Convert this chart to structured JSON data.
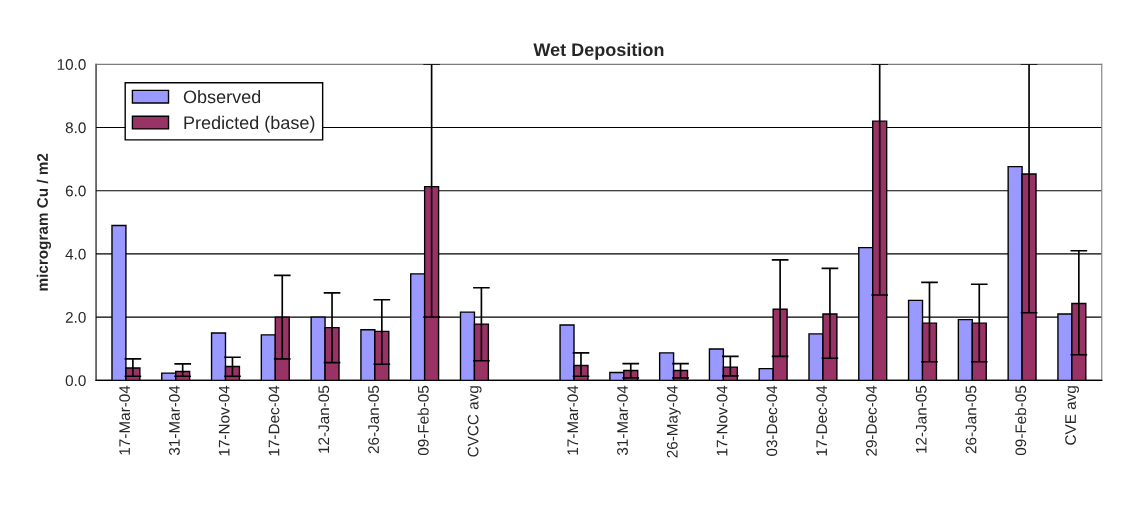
{
  "chart_data": {
    "type": "bar",
    "title": "Wet Deposition",
    "ylabel": "microgram Cu / m2",
    "categories": [
      "17-Mar-04",
      "31-Mar-04",
      "17-Nov-04",
      "17-Dec-04",
      "12-Jan-05",
      "26-Jan-05",
      "09-Feb-05",
      "CVCC avg",
      null,
      "17-Mar-04",
      "31-Mar-04",
      "26-May-04",
      "17-Nov-04",
      "03-Dec-04",
      "17-Dec-04",
      "29-Dec-04",
      "12-Jan-05",
      "26-Jan-05",
      "09-Feb-05",
      "CVE avg"
    ],
    "series": [
      {
        "name": "Observed",
        "color": "#9999ff",
        "values": [
          4.9,
          0.23,
          1.5,
          1.44,
          2.0,
          1.6,
          3.37,
          2.16,
          null,
          1.75,
          0.25,
          0.87,
          0.99,
          0.37,
          1.47,
          4.2,
          2.53,
          1.92,
          6.76,
          2.1
        ]
      },
      {
        "name": "Predicted (base)",
        "color": "#993366",
        "values": [
          0.39,
          0.28,
          0.44,
          2.0,
          1.67,
          1.55,
          6.13,
          1.78,
          null,
          0.47,
          0.31,
          0.31,
          0.42,
          2.25,
          2.1,
          8.2,
          1.81,
          1.81,
          6.53,
          2.43
        ],
        "errors": [
          [
            0.13,
            0.68
          ],
          [
            0.13,
            0.52
          ],
          [
            0.13,
            0.73
          ],
          [
            0.68,
            3.32
          ],
          [
            0.56,
            2.77
          ],
          [
            0.51,
            2.55
          ],
          [
            2.0,
            10.0
          ],
          [
            0.62,
            2.93
          ],
          null,
          [
            0.13,
            0.87
          ],
          [
            0.08,
            0.53
          ],
          [
            0.08,
            0.53
          ],
          [
            0.14,
            0.76
          ],
          [
            0.76,
            3.81
          ],
          [
            0.7,
            3.54
          ],
          [
            2.7,
            10.0
          ],
          [
            0.59,
            3.1
          ],
          [
            0.59,
            3.04
          ],
          [
            2.14,
            10.0
          ],
          [
            0.81,
            4.1
          ]
        ]
      }
    ],
    "ylim": [
      0,
      10
    ],
    "yticks": [
      {
        "value": 0,
        "label": "0.0"
      },
      {
        "value": 2,
        "label": "2.0"
      },
      {
        "value": 4,
        "label": "4.0"
      },
      {
        "value": 6,
        "label": "6.0"
      },
      {
        "value": 8,
        "label": "8.0"
      },
      {
        "value": 10,
        "label": "10.0"
      }
    ],
    "grid": "y",
    "legend": "top left"
  }
}
